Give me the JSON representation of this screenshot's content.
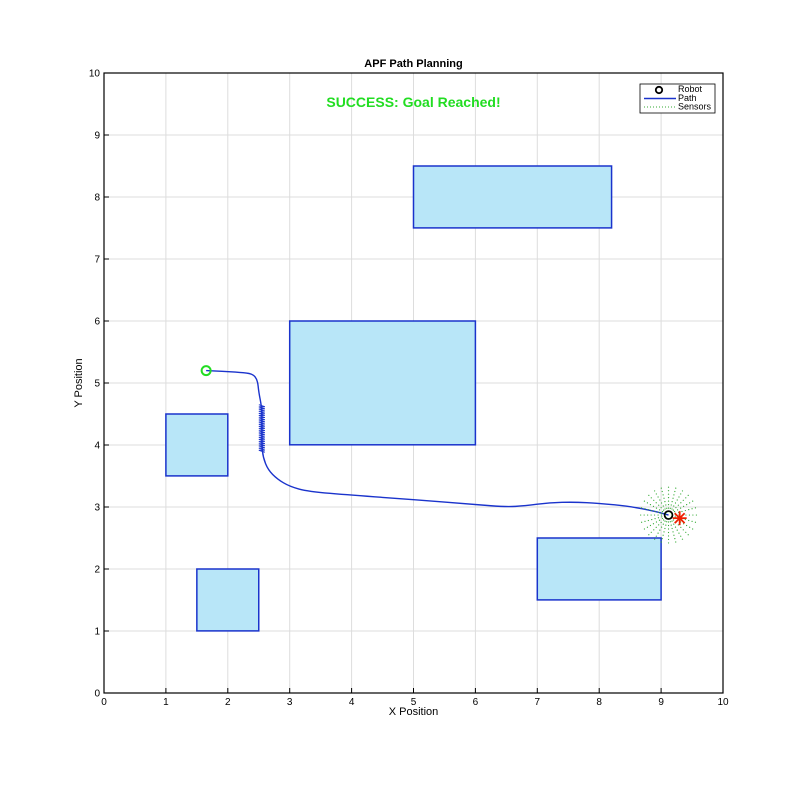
{
  "chart_data": {
    "type": "scatter",
    "title": "APF Path Planning",
    "xlabel": "X Position",
    "ylabel": "Y Position",
    "xlim": [
      0,
      10
    ],
    "ylim": [
      0,
      10
    ],
    "xticks": [
      "0",
      "1",
      "2",
      "3",
      "4",
      "5",
      "6",
      "7",
      "8",
      "9",
      "10"
    ],
    "yticks": [
      "0",
      "1",
      "2",
      "3",
      "4",
      "5",
      "6",
      "7",
      "8",
      "9",
      "10"
    ],
    "grid": true,
    "legend_location": "top-right",
    "status_text": "SUCCESS: Goal Reached!",
    "status_color": "#22dd22",
    "legend": [
      {
        "label": "Robot",
        "kind": "circle-marker",
        "color": "#000000"
      },
      {
        "label": "Path",
        "kind": "line",
        "color": "#1a33cc"
      },
      {
        "label": "Sensors",
        "kind": "dotted-line",
        "color": "#33aa33"
      }
    ],
    "obstacles": [
      {
        "x": 5.0,
        "y": 7.5,
        "w": 3.2,
        "h": 1.0
      },
      {
        "x": 3.0,
        "y": 4.0,
        "w": 3.0,
        "h": 2.0
      },
      {
        "x": 1.0,
        "y": 3.5,
        "w": 1.0,
        "h": 1.0
      },
      {
        "x": 1.5,
        "y": 1.0,
        "w": 1.0,
        "h": 1.0
      },
      {
        "x": 7.0,
        "y": 1.5,
        "w": 2.0,
        "h": 1.0
      }
    ],
    "obstacle_fill": "#b8e6f8",
    "obstacle_edge": "#1a33cc",
    "start": {
      "x": 1.65,
      "y": 5.2
    },
    "goal": {
      "x": 9.3,
      "y": 2.82
    },
    "robot": {
      "x": 9.12,
      "y": 2.87
    },
    "sensor_range": 0.45,
    "path": [
      [
        1.65,
        5.2
      ],
      [
        1.9,
        5.19
      ],
      [
        2.2,
        5.17
      ],
      [
        2.4,
        5.15
      ],
      [
        2.48,
        5.05
      ],
      [
        2.5,
        4.85
      ],
      [
        2.55,
        4.6
      ],
      [
        2.55,
        4.3
      ],
      [
        2.55,
        4.0
      ],
      [
        2.57,
        3.8
      ],
      [
        2.65,
        3.6
      ],
      [
        2.8,
        3.45
      ],
      [
        3.0,
        3.33
      ],
      [
        3.3,
        3.25
      ],
      [
        4.0,
        3.19
      ],
      [
        5.0,
        3.12
      ],
      [
        6.0,
        3.04
      ],
      [
        6.5,
        3.0
      ],
      [
        6.8,
        3.02
      ],
      [
        7.2,
        3.07
      ],
      [
        7.6,
        3.08
      ],
      [
        8.0,
        3.06
      ],
      [
        8.5,
        3.01
      ],
      [
        8.9,
        2.93
      ],
      [
        9.12,
        2.87
      ]
    ]
  }
}
